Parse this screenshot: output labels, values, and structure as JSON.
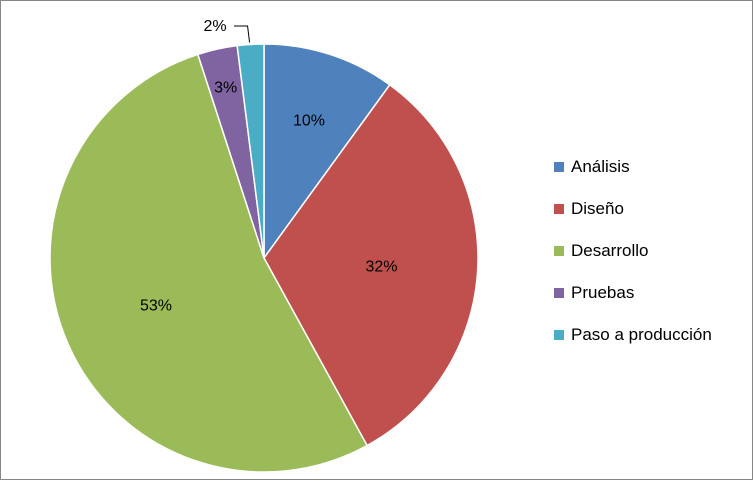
{
  "chart_data": {
    "type": "pie",
    "title": "",
    "legend_position": "right",
    "slices": [
      {
        "name": "Análisis",
        "value": 10,
        "label": "10%",
        "color": "#4F81BD"
      },
      {
        "name": "Diseño",
        "value": 32,
        "label": "32%",
        "color": "#C0504D"
      },
      {
        "name": "Desarrollo",
        "value": 53,
        "label": "53%",
        "color": "#9BBB59"
      },
      {
        "name": "Pruebas",
        "value": 3,
        "label": "3%",
        "color": "#8064A2"
      },
      {
        "name": "Paso a producción",
        "value": 2,
        "label": "2%",
        "color": "#4BACC6"
      }
    ]
  }
}
